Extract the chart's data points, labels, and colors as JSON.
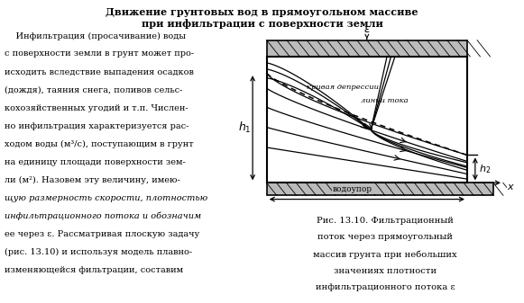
{
  "title_line1": "Движение грунтовых вод в прямоугольном массиве",
  "title_line2": "при инфильтрации с поверхности земли",
  "body_lines": [
    "    Инфильтрация (просачивание) воды",
    "с поверхности земли в грунт может про-",
    "исходить вследствие выпадения осадков",
    "(дождя), таяния снега, поливов сельс-",
    "кохозяйственных угодий и т.п. Числен-",
    "но инфильтрация характеризуется рас-",
    "ходом воды (м³/с), поступающим в грунт",
    "на единицу площади поверхности зем-",
    "ли (м²). Назовем эту величину, имею-",
    "щую размерность скорости, плотностью",
    "инфильтрационного потока и обозначим",
    "ее через ε. Рассматривая плоскую задачу",
    "(рис. 13.10) и используя модель плавно-",
    "изменяющейся фильтрации, составим"
  ],
  "body_italic_words": [
    "плотностью",
    "инфильтрационного потока"
  ],
  "caption_lines": [
    "Рис. 13.10. Фильтрационный",
    "поток через прямоугольный",
    "массив грунта при небольших",
    "значениях плотности",
    "инфильтрационного потока ε"
  ],
  "diagram_bg": "#ffffff",
  "hatch_color": "#000000",
  "line_color": "#000000"
}
